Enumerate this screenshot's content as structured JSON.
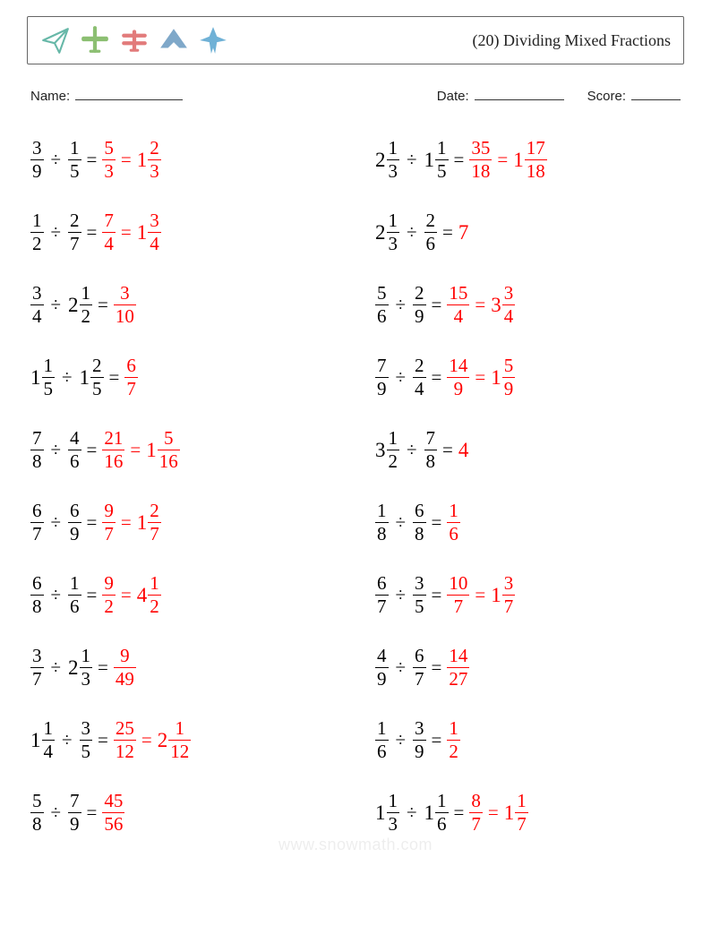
{
  "title": "(20) Dividing Mixed Fractions",
  "icon_colors": {
    "paper_plane": "#67b8a8",
    "prop_plane": "#8cbf72",
    "biplane": "#e27b7b",
    "stealth": "#7fa8c9",
    "jet": "#6fb1d6"
  },
  "labels": {
    "name": "Name:",
    "date": "Date:",
    "score": "Score:"
  },
  "watermark": "www.snowmath.com",
  "answer_color": "#ff0000",
  "text_color": "#000000",
  "columns": [
    [
      {
        "a": {
          "n": 3,
          "d": 9
        },
        "b": {
          "n": 1,
          "d": 5
        },
        "ans": [
          {
            "n": 5,
            "d": 3
          },
          {
            "w": 1,
            "n": 2,
            "d": 3
          }
        ]
      },
      {
        "a": {
          "n": 1,
          "d": 2
        },
        "b": {
          "n": 2,
          "d": 7
        },
        "ans": [
          {
            "n": 7,
            "d": 4
          },
          {
            "w": 1,
            "n": 3,
            "d": 4
          }
        ]
      },
      {
        "a": {
          "n": 3,
          "d": 4
        },
        "b": {
          "w": 2,
          "n": 1,
          "d": 2
        },
        "ans": [
          {
            "n": 3,
            "d": 10
          }
        ]
      },
      {
        "a": {
          "w": 1,
          "n": 1,
          "d": 5
        },
        "b": {
          "w": 1,
          "n": 2,
          "d": 5
        },
        "ans": [
          {
            "n": 6,
            "d": 7
          }
        ]
      },
      {
        "a": {
          "n": 7,
          "d": 8
        },
        "b": {
          "n": 4,
          "d": 6
        },
        "ans": [
          {
            "n": 21,
            "d": 16
          },
          {
            "w": 1,
            "n": 5,
            "d": 16
          }
        ]
      },
      {
        "a": {
          "n": 6,
          "d": 7
        },
        "b": {
          "n": 6,
          "d": 9
        },
        "ans": [
          {
            "n": 9,
            "d": 7
          },
          {
            "w": 1,
            "n": 2,
            "d": 7
          }
        ]
      },
      {
        "a": {
          "n": 6,
          "d": 8
        },
        "b": {
          "n": 1,
          "d": 6
        },
        "ans": [
          {
            "n": 9,
            "d": 2
          },
          {
            "w": 4,
            "n": 1,
            "d": 2
          }
        ]
      },
      {
        "a": {
          "n": 3,
          "d": 7
        },
        "b": {
          "w": 2,
          "n": 1,
          "d": 3
        },
        "ans": [
          {
            "n": 9,
            "d": 49
          }
        ]
      },
      {
        "a": {
          "w": 1,
          "n": 1,
          "d": 4
        },
        "b": {
          "n": 3,
          "d": 5
        },
        "ans": [
          {
            "n": 25,
            "d": 12
          },
          {
            "w": 2,
            "n": 1,
            "d": 12
          }
        ]
      },
      {
        "a": {
          "n": 5,
          "d": 8
        },
        "b": {
          "n": 7,
          "d": 9
        },
        "ans": [
          {
            "n": 45,
            "d": 56
          }
        ]
      }
    ],
    [
      {
        "a": {
          "w": 2,
          "n": 1,
          "d": 3
        },
        "b": {
          "w": 1,
          "n": 1,
          "d": 5
        },
        "ans": [
          {
            "n": 35,
            "d": 18
          },
          {
            "w": 1,
            "n": 17,
            "d": 18
          }
        ]
      },
      {
        "a": {
          "w": 2,
          "n": 1,
          "d": 3
        },
        "b": {
          "n": 2,
          "d": 6
        },
        "ans": [
          {
            "int": 7
          }
        ]
      },
      {
        "a": {
          "n": 5,
          "d": 6
        },
        "b": {
          "n": 2,
          "d": 9
        },
        "ans": [
          {
            "n": 15,
            "d": 4
          },
          {
            "w": 3,
            "n": 3,
            "d": 4
          }
        ]
      },
      {
        "a": {
          "n": 7,
          "d": 9
        },
        "b": {
          "n": 2,
          "d": 4
        },
        "ans": [
          {
            "n": 14,
            "d": 9
          },
          {
            "w": 1,
            "n": 5,
            "d": 9
          }
        ]
      },
      {
        "a": {
          "w": 3,
          "n": 1,
          "d": 2
        },
        "b": {
          "n": 7,
          "d": 8
        },
        "ans": [
          {
            "int": 4
          }
        ]
      },
      {
        "a": {
          "n": 1,
          "d": 8
        },
        "b": {
          "n": 6,
          "d": 8
        },
        "ans": [
          {
            "n": 1,
            "d": 6
          }
        ]
      },
      {
        "a": {
          "n": 6,
          "d": 7
        },
        "b": {
          "n": 3,
          "d": 5
        },
        "ans": [
          {
            "n": 10,
            "d": 7
          },
          {
            "w": 1,
            "n": 3,
            "d": 7
          }
        ]
      },
      {
        "a": {
          "n": 4,
          "d": 9
        },
        "b": {
          "n": 6,
          "d": 7
        },
        "ans": [
          {
            "n": 14,
            "d": 27
          }
        ]
      },
      {
        "a": {
          "n": 1,
          "d": 6
        },
        "b": {
          "n": 3,
          "d": 9
        },
        "ans": [
          {
            "n": 1,
            "d": 2
          }
        ]
      },
      {
        "a": {
          "w": 1,
          "n": 1,
          "d": 3
        },
        "b": {
          "w": 1,
          "n": 1,
          "d": 6
        },
        "ans": [
          {
            "n": 8,
            "d": 7
          },
          {
            "w": 1,
            "n": 1,
            "d": 7
          }
        ]
      }
    ]
  ]
}
